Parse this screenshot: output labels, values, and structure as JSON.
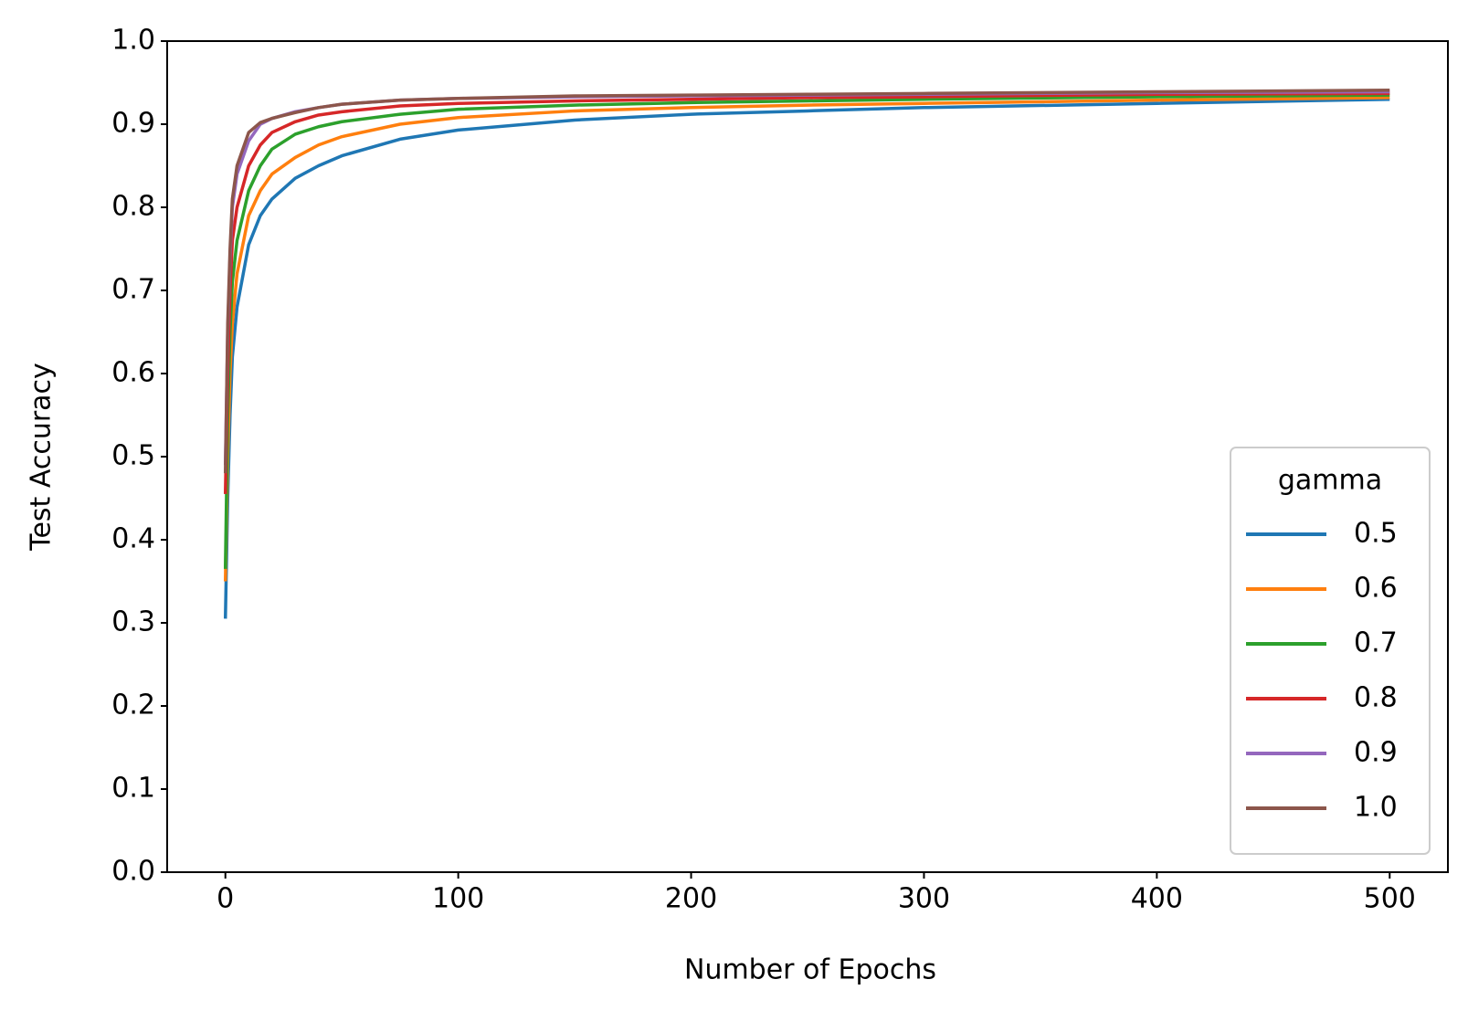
{
  "chart_data": {
    "type": "line",
    "x_label": "Number of Epochs",
    "y_label": "Test Accuracy",
    "x": [
      0,
      1,
      2,
      3,
      5,
      10,
      15,
      20,
      30,
      40,
      50,
      75,
      100,
      150,
      200,
      250,
      300,
      400,
      500
    ],
    "series": [
      {
        "name": "0.5",
        "color": "#1f77b4",
        "values": [
          0.305,
          0.45,
          0.55,
          0.62,
          0.68,
          0.755,
          0.79,
          0.81,
          0.835,
          0.85,
          0.862,
          0.882,
          0.893,
          0.905,
          0.912,
          0.916,
          0.92,
          0.925,
          0.93
        ]
      },
      {
        "name": "0.6",
        "color": "#ff7f0e",
        "values": [
          0.35,
          0.5,
          0.6,
          0.66,
          0.72,
          0.79,
          0.82,
          0.84,
          0.86,
          0.875,
          0.885,
          0.9,
          0.908,
          0.916,
          0.92,
          0.923,
          0.925,
          0.929,
          0.932
        ]
      },
      {
        "name": "0.7",
        "color": "#2ca02c",
        "values": [
          0.365,
          0.55,
          0.65,
          0.71,
          0.76,
          0.82,
          0.85,
          0.87,
          0.888,
          0.897,
          0.903,
          0.912,
          0.918,
          0.923,
          0.926,
          0.928,
          0.93,
          0.933,
          0.935
        ]
      },
      {
        "name": "0.8",
        "color": "#d62728",
        "values": [
          0.455,
          0.6,
          0.7,
          0.76,
          0.8,
          0.85,
          0.875,
          0.89,
          0.903,
          0.911,
          0.915,
          0.922,
          0.925,
          0.928,
          0.93,
          0.932,
          0.933,
          0.936,
          0.937
        ]
      },
      {
        "name": "0.9",
        "color": "#9467bd",
        "values": [
          0.49,
          0.65,
          0.74,
          0.8,
          0.84,
          0.88,
          0.9,
          0.907,
          0.915,
          0.92,
          0.924,
          0.929,
          0.931,
          0.933,
          0.934,
          0.935,
          0.936,
          0.938,
          0.939
        ]
      },
      {
        "name": "1.0",
        "color": "#8c564b",
        "values": [
          0.48,
          0.66,
          0.75,
          0.81,
          0.85,
          0.89,
          0.902,
          0.907,
          0.914,
          0.92,
          0.924,
          0.929,
          0.931,
          0.934,
          0.935,
          0.936,
          0.937,
          0.939,
          0.941
        ]
      }
    ],
    "legend_title": "gamma",
    "legend_loc": "lower right",
    "xlim": [
      -25,
      525
    ],
    "xticks": [
      0,
      100,
      200,
      300,
      400,
      500
    ],
    "ylim": [
      0,
      1
    ],
    "yticks": [
      {
        "value": 0,
        "label": "0.0"
      },
      0.1,
      0.2,
      0.3,
      0.4,
      0.5,
      0.6,
      0.7,
      0.8,
      0.9,
      {
        "value": 1,
        "label": "1.0"
      }
    ],
    "grid": false
  }
}
